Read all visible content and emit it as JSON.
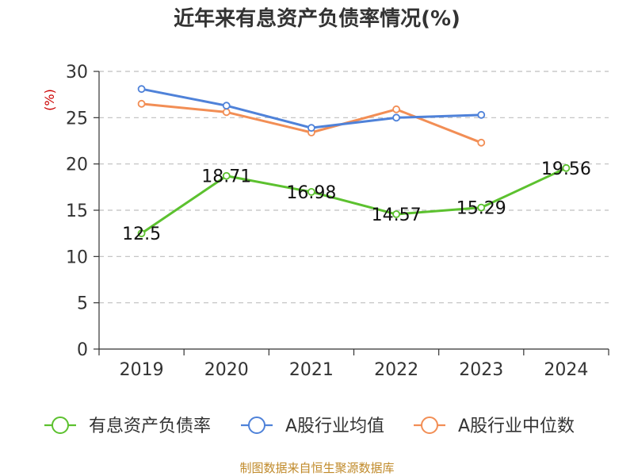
{
  "chart_data": {
    "type": "line",
    "title": "近年来有息资产负债率情况(%)",
    "ylabel": "(%)",
    "xlabel": "",
    "categories": [
      "2019",
      "2020",
      "2021",
      "2022",
      "2023",
      "2024"
    ],
    "yticks": [
      "0",
      "5",
      "10",
      "15",
      "20",
      "25",
      "30"
    ],
    "ylim": [
      0,
      30
    ],
    "grid": "horizontal-dashed",
    "legend": "bottom",
    "series": [
      {
        "name": "有息资产负债率",
        "color": "#5cc12f",
        "values": [
          12.5,
          18.71,
          16.98,
          14.57,
          15.29,
          19.56
        ],
        "labels": [
          "12.5",
          "18.71",
          "16.98",
          "14.57",
          "15.29",
          "19.56"
        ]
      },
      {
        "name": "A股行业均值",
        "color": "#4f82d9",
        "values": [
          28.1,
          26.3,
          23.9,
          25.0,
          25.3,
          null
        ]
      },
      {
        "name": "A股行业中位数",
        "color": "#f28e55",
        "values": [
          26.5,
          25.6,
          23.4,
          25.9,
          22.3,
          null
        ]
      }
    ]
  },
  "source": "制图数据来自恒生聚源数据库"
}
